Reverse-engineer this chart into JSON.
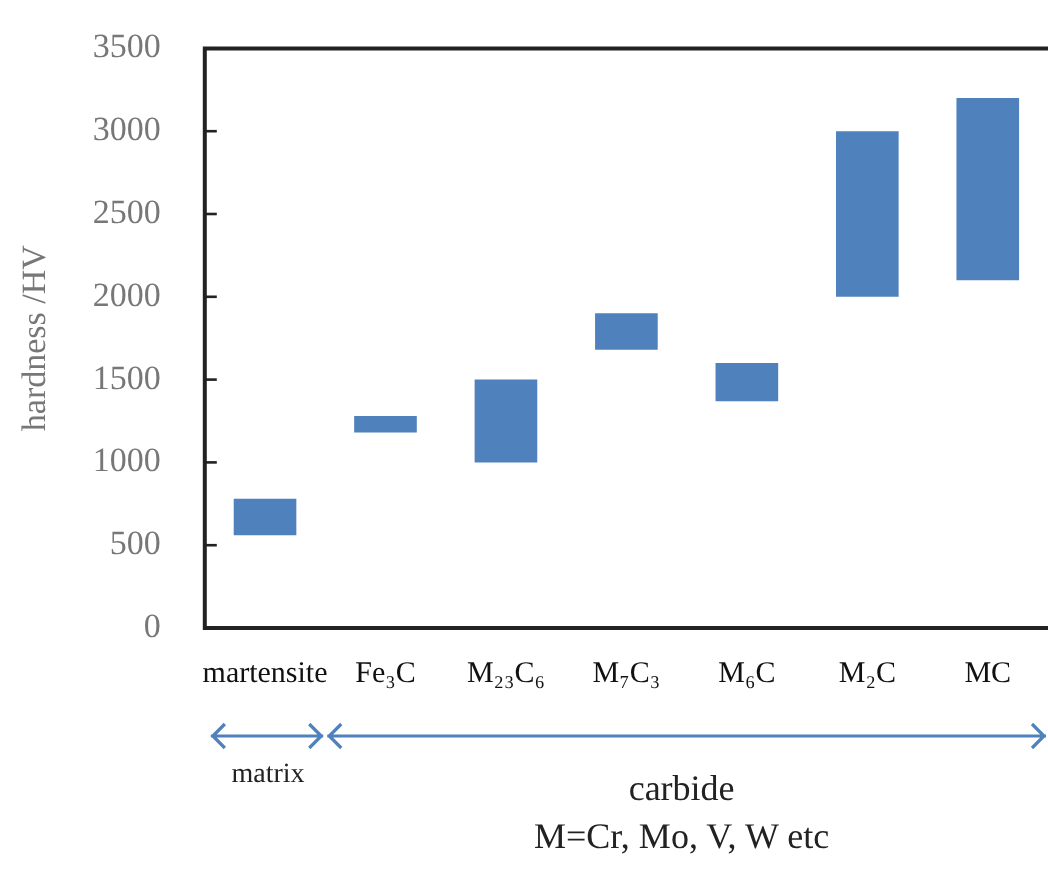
{
  "chart_data": {
    "type": "bar",
    "ylabel": "hardness /HV",
    "categories": [
      "martensite",
      "Fe₃C",
      "M₂₃C₆",
      "M₇C₃",
      "M₆C",
      "M₂C",
      "MC"
    ],
    "base": [
      560,
      1180,
      1000,
      1680,
      1370,
      2000,
      2100
    ],
    "values": [
      220,
      100,
      500,
      220,
      230,
      1000,
      1100
    ],
    "color": "#4f81bd",
    "ylim": [
      0,
      3500
    ],
    "yticks": [
      0,
      500,
      1000,
      1500,
      2000,
      2500,
      3000,
      3500
    ],
    "annotations": [
      "matrix",
      "carbide",
      "M=Cr, Mo, V, W etc"
    ]
  }
}
